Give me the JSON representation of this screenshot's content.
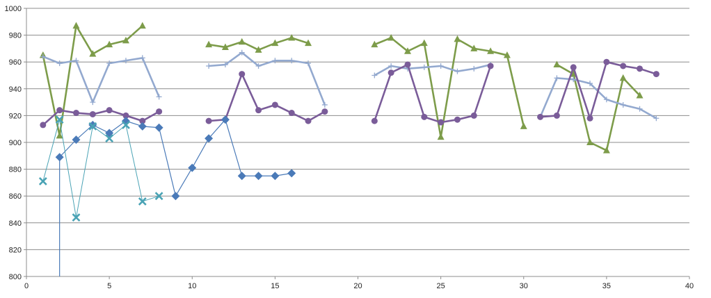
{
  "chart_data": {
    "type": "line",
    "title": "",
    "xlabel": "",
    "ylabel": "",
    "xlim": [
      0,
      40
    ],
    "ylim": [
      800,
      1000
    ],
    "x_ticks": [
      0,
      5,
      10,
      15,
      20,
      25,
      30,
      35,
      40
    ],
    "y_ticks": [
      800,
      820,
      840,
      860,
      880,
      900,
      920,
      940,
      960,
      980,
      1000
    ],
    "grid": "horizontal",
    "legend": "none",
    "series": [
      {
        "color": "#7d9c4a",
        "marker": "triangle",
        "points": [
          [
            1,
            965
          ],
          [
            2,
            905
          ],
          [
            3,
            987
          ],
          [
            4,
            966
          ],
          [
            5,
            973
          ],
          [
            6,
            976
          ],
          [
            7,
            987
          ],
          null,
          [
            11,
            973
          ],
          [
            12,
            971
          ],
          [
            13,
            975
          ],
          [
            14,
            969
          ],
          [
            15,
            974
          ],
          [
            16,
            978
          ],
          [
            17,
            974
          ],
          null,
          [
            21,
            973
          ],
          [
            22,
            978
          ],
          [
            23,
            968
          ],
          [
            24,
            974
          ],
          [
            25,
            904
          ],
          [
            26,
            977
          ],
          [
            27,
            970
          ],
          [
            28,
            968
          ],
          [
            29,
            965
          ],
          [
            30,
            912
          ],
          null,
          [
            32,
            958
          ],
          [
            33,
            951
          ],
          [
            34,
            900
          ],
          [
            35,
            894
          ],
          [
            36,
            948
          ],
          [
            37,
            935
          ]
        ]
      },
      {
        "color": "#93a9cf",
        "marker": "plus",
        "points": [
          [
            1,
            964
          ],
          [
            2,
            959
          ],
          [
            3,
            961
          ],
          [
            4,
            930
          ],
          [
            5,
            959
          ],
          [
            6,
            961
          ],
          [
            7,
            963
          ],
          [
            8,
            934
          ],
          null,
          [
            11,
            957
          ],
          [
            12,
            958
          ],
          [
            13,
            967
          ],
          [
            14,
            957
          ],
          [
            15,
            961
          ],
          [
            16,
            961
          ],
          [
            17,
            959
          ],
          [
            18,
            928
          ],
          null,
          [
            21,
            950
          ],
          [
            22,
            957
          ],
          [
            23,
            955
          ],
          [
            24,
            956
          ],
          [
            25,
            957
          ],
          [
            26,
            953
          ],
          [
            27,
            955
          ],
          [
            28,
            958
          ],
          null,
          [
            31,
            919
          ],
          [
            32,
            948
          ],
          [
            33,
            947
          ],
          [
            34,
            944
          ],
          [
            35,
            932
          ],
          [
            36,
            928
          ],
          [
            37,
            925
          ],
          [
            38,
            918
          ]
        ]
      },
      {
        "color": "#7a5c99",
        "marker": "circle",
        "points": [
          [
            1,
            913
          ],
          [
            2,
            924
          ],
          [
            3,
            922
          ],
          [
            4,
            921
          ],
          [
            5,
            924
          ],
          [
            6,
            920
          ],
          [
            7,
            916
          ],
          [
            8,
            923
          ],
          null,
          [
            11,
            916
          ],
          [
            12,
            917
          ],
          [
            13,
            951
          ],
          [
            14,
            924
          ],
          [
            15,
            928
          ],
          [
            16,
            922
          ],
          [
            17,
            916
          ],
          [
            18,
            923
          ],
          null,
          [
            21,
            916
          ],
          [
            22,
            952
          ],
          [
            23,
            958
          ],
          [
            24,
            919
          ],
          [
            25,
            915
          ],
          [
            26,
            917
          ],
          [
            27,
            920
          ],
          [
            28,
            957
          ],
          null,
          [
            31,
            919
          ],
          [
            32,
            920
          ],
          [
            33,
            956
          ],
          [
            34,
            918
          ],
          [
            35,
            960
          ],
          [
            36,
            957
          ],
          [
            37,
            955
          ],
          [
            38,
            951
          ]
        ]
      },
      {
        "color": "#4a7ab8",
        "marker": "diamond",
        "points": [
          [
            2,
            800
          ],
          [
            2,
            889
          ],
          [
            3,
            902
          ],
          [
            4,
            913
          ],
          [
            5,
            907
          ],
          [
            6,
            916
          ],
          [
            7,
            912
          ],
          [
            8,
            911
          ],
          [
            9,
            860
          ],
          [
            10,
            881
          ],
          [
            11,
            903
          ],
          [
            12,
            917
          ],
          [
            13,
            875
          ],
          [
            14,
            875
          ],
          [
            15,
            875
          ],
          [
            16,
            877
          ]
        ]
      },
      {
        "color": "#4aa3b5",
        "marker": "x",
        "points": [
          [
            1,
            871
          ],
          [
            2,
            917
          ],
          [
            3,
            844
          ],
          [
            4,
            912
          ],
          [
            5,
            903
          ],
          [
            6,
            913
          ],
          [
            7,
            856
          ],
          [
            8,
            860
          ]
        ]
      }
    ]
  }
}
